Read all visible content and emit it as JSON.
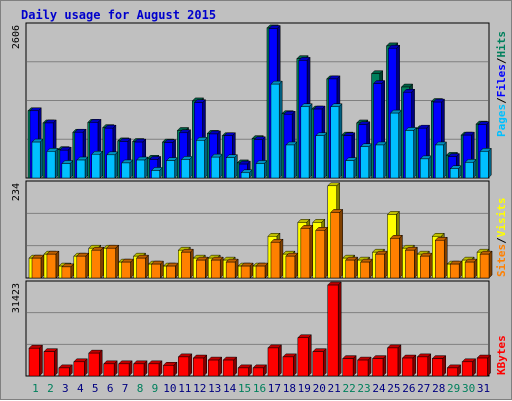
{
  "title": "Daily usage for August 2015",
  "colors": {
    "hits": "#00805c",
    "files": "#0000ff",
    "pages": "#00c0ff",
    "visits": "#ffff00",
    "sites": "#ff8000",
    "kbytes": "#ff0000",
    "weekday_label": "#000080",
    "weekend_label": "#00805c",
    "legend_separator": "#000000"
  },
  "legends": {
    "top": [
      {
        "text": "Pages",
        "color": "#00c0ff"
      },
      {
        "text": "/",
        "color": "#000000"
      },
      {
        "text": "Files",
        "color": "#0000ff"
      },
      {
        "text": "/",
        "color": "#000000"
      },
      {
        "text": "Hits",
        "color": "#00805c"
      }
    ],
    "middle": [
      {
        "text": "Sites",
        "color": "#ff8000"
      },
      {
        "text": "/",
        "color": "#000000"
      },
      {
        "text": "Visits",
        "color": "#ffff00"
      }
    ],
    "bottom": [
      {
        "text": "KBytes",
        "color": "#ff0000"
      }
    ]
  },
  "chart_data": [
    {
      "type": "bar",
      "panel": "hits-files-pages",
      "max_label": "2606",
      "ylim": [
        0,
        2606
      ],
      "categories": [
        "1",
        "2",
        "3",
        "4",
        "5",
        "6",
        "7",
        "8",
        "9",
        "10",
        "11",
        "12",
        "13",
        "14",
        "15",
        "16",
        "17",
        "18",
        "19",
        "20",
        "21",
        "22",
        "23",
        "24",
        "25",
        "26",
        "27",
        "28",
        "29",
        "30",
        "31"
      ],
      "weekend": [
        1,
        2,
        8,
        9,
        15,
        16,
        22,
        23,
        29,
        30
      ],
      "series": [
        {
          "name": "Hits",
          "values": [
            1160,
            950,
            490,
            790,
            960,
            870,
            640,
            630,
            340,
            620,
            820,
            1330,
            770,
            730,
            260,
            680,
            2590,
            1110,
            2060,
            1190,
            1710,
            740,
            950,
            1800,
            2280,
            1570,
            850,
            1320,
            390,
            740,
            930
          ]
        },
        {
          "name": "Files",
          "values": [
            1160,
            950,
            480,
            790,
            960,
            860,
            630,
            620,
            320,
            610,
            780,
            1300,
            760,
            730,
            240,
            660,
            2580,
            1100,
            2030,
            1190,
            1710,
            730,
            920,
            1630,
            2240,
            1480,
            860,
            1310,
            370,
            740,
            920
          ]
        },
        {
          "name": "Pages",
          "values": [
            620,
            460,
            250,
            310,
            410,
            400,
            260,
            310,
            130,
            300,
            320,
            650,
            360,
            350,
            90,
            250,
            1620,
            570,
            1230,
            730,
            1230,
            300,
            540,
            570,
            1120,
            820,
            330,
            570,
            160,
            270,
            460
          ]
        }
      ]
    },
    {
      "type": "bar",
      "panel": "visits-sites",
      "max_label": "234",
      "ylim": [
        0,
        234
      ],
      "categories": [
        "1",
        "2",
        "3",
        "4",
        "5",
        "6",
        "7",
        "8",
        "9",
        "10",
        "11",
        "12",
        "13",
        "14",
        "15",
        "16",
        "17",
        "18",
        "19",
        "20",
        "21",
        "22",
        "23",
        "24",
        "25",
        "26",
        "27",
        "28",
        "29",
        "30",
        "31"
      ],
      "weekend": [
        1,
        2,
        8,
        9,
        15,
        16,
        22,
        23,
        29,
        30
      ],
      "series": [
        {
          "name": "Visits",
          "values": [
            50,
            60,
            30,
            55,
            75,
            75,
            40,
            55,
            35,
            30,
            70,
            50,
            50,
            45,
            30,
            30,
            105,
            60,
            140,
            140,
            232,
            50,
            45,
            65,
            160,
            75,
            60,
            105,
            35,
            45,
            65
          ]
        },
        {
          "name": "Sites",
          "values": [
            50,
            60,
            28,
            55,
            70,
            75,
            40,
            50,
            35,
            30,
            65,
            45,
            45,
            40,
            30,
            30,
            90,
            55,
            125,
            120,
            165,
            45,
            40,
            60,
            100,
            70,
            55,
            95,
            35,
            40,
            60
          ]
        }
      ]
    },
    {
      "type": "bar",
      "panel": "kbytes",
      "max_label": "31423",
      "ylim": [
        0,
        31423
      ],
      "categories": [
        "1",
        "2",
        "3",
        "4",
        "5",
        "6",
        "7",
        "8",
        "9",
        "10",
        "11",
        "12",
        "13",
        "14",
        "15",
        "16",
        "17",
        "18",
        "19",
        "20",
        "21",
        "22",
        "23",
        "24",
        "25",
        "26",
        "27",
        "28",
        "29",
        "30",
        "31"
      ],
      "weekend": [
        1,
        2,
        8,
        9,
        15,
        16,
        22,
        23,
        29,
        30
      ],
      "series": [
        {
          "name": "KBytes",
          "values": [
            9600,
            8400,
            2800,
            4900,
            7900,
            4200,
            4200,
            4200,
            4200,
            3700,
            6600,
            6200,
            5500,
            5500,
            2800,
            2800,
            9700,
            6600,
            13200,
            8400,
            31400,
            6000,
            5500,
            6000,
            9700,
            6200,
            6600,
            6000,
            2800,
            4900,
            6200
          ]
        }
      ]
    }
  ]
}
